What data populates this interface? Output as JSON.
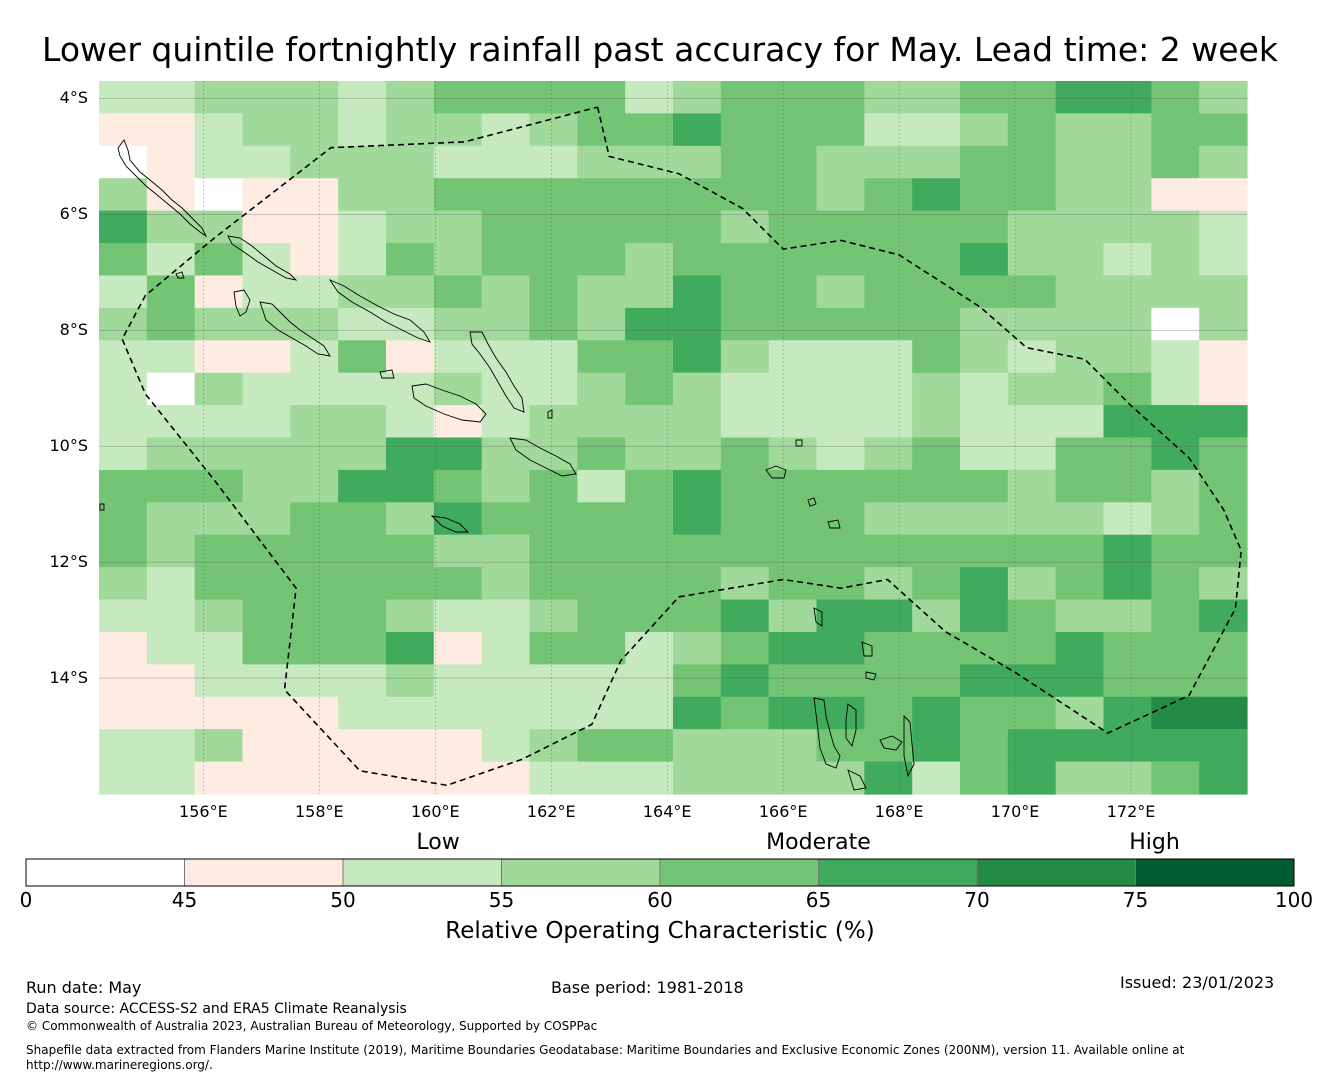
{
  "title": "Lower quintile fortnightly rainfall past accuracy for May. Lead time: 2 week",
  "map": {
    "lon_range": [
      154.2,
      174.0
    ],
    "lat_range": [
      -16.0,
      -3.7
    ],
    "lat_ticks": [
      {
        "value": -4,
        "label": "4°S"
      },
      {
        "value": -6,
        "label": "6°S"
      },
      {
        "value": -8,
        "label": "8°S"
      },
      {
        "value": -10,
        "label": "10°S"
      },
      {
        "value": -12,
        "label": "12°S"
      },
      {
        "value": -14,
        "label": "14°S"
      }
    ],
    "lon_ticks": [
      {
        "value": 156,
        "label": "156°E"
      },
      {
        "value": 158,
        "label": "158°E"
      },
      {
        "value": 160,
        "label": "160°E"
      },
      {
        "value": 162,
        "label": "162°E"
      },
      {
        "value": 164,
        "label": "164°E"
      },
      {
        "value": 166,
        "label": "166°E"
      },
      {
        "value": 168,
        "label": "168°E"
      },
      {
        "value": 170,
        "label": "170°E"
      },
      {
        "value": 172,
        "label": "172°E"
      }
    ],
    "grid": true,
    "grid_cols": 24,
    "grid_rows": 22,
    "cell_classes": [
      "223332344442344433445543",
      "112332332344544422343344",
      "012233322233344333443343",
      "310113344444444345443311",
      "533112334444434444433332",
      "424212434443444444533232",
      "241223343433544344443333",
      "343332233435544444333303",
      "221124122244532224323321",
      "203222232234322223233421",
      "222233212333322223222555",
      "233333553343343234224454",
      "444335543424544444434434",
      "433344354444544433333234",
      "434444433444444444444544",
      "324444443444434434534543",
      "223444322344453553543345",
      "122444512442345544445444",
      "112222322222454444555444",
      "111112222222545545443566",
      "223111112344333445455555",
      "221111111222333352453345"
    ],
    "eez_lonlat": [
      [
        162.8,
        -4.15
      ],
      [
        163.0,
        -5.0
      ],
      [
        164.2,
        -5.3
      ],
      [
        165.3,
        -5.9
      ],
      [
        166.0,
        -6.6
      ],
      [
        167.0,
        -6.45
      ],
      [
        168.0,
        -6.7
      ],
      [
        169.4,
        -7.6
      ],
      [
        170.2,
        -8.3
      ],
      [
        171.2,
        -8.5
      ],
      [
        172.0,
        -9.3
      ],
      [
        173.0,
        -10.2
      ],
      [
        173.6,
        -11.1
      ],
      [
        173.9,
        -11.8
      ],
      [
        173.8,
        -12.8
      ],
      [
        173.0,
        -14.3
      ],
      [
        171.6,
        -14.95
      ],
      [
        170.0,
        -13.9
      ],
      [
        168.8,
        -13.2
      ],
      [
        167.8,
        -12.3
      ],
      [
        167.0,
        -12.45
      ],
      [
        166.0,
        -12.3
      ],
      [
        164.2,
        -12.6
      ],
      [
        163.2,
        -13.7
      ],
      [
        162.7,
        -14.8
      ],
      [
        161.5,
        -15.4
      ],
      [
        160.2,
        -15.85
      ],
      [
        158.7,
        -15.6
      ],
      [
        157.4,
        -14.2
      ],
      [
        157.6,
        -12.45
      ],
      [
        156.2,
        -10.6
      ],
      [
        155.0,
        -9.1
      ],
      [
        154.6,
        -8.15
      ],
      [
        155.0,
        -7.4
      ],
      [
        156.2,
        -6.4
      ],
      [
        158.2,
        -4.85
      ],
      [
        160.5,
        -4.75
      ],
      [
        162.8,
        -4.15
      ]
    ]
  },
  "colorbar": {
    "categories": [
      {
        "label": "Low",
        "position": 53
      },
      {
        "label": "Moderate",
        "position": 65
      },
      {
        "label": "High",
        "position": 78
      }
    ],
    "bins": [
      {
        "from": 0,
        "to": 45,
        "color": "#ffffff"
      },
      {
        "from": 45,
        "to": 50,
        "color": "#feebe2"
      },
      {
        "from": 50,
        "to": 55,
        "color": "#c7e9c0"
      },
      {
        "from": 55,
        "to": 60,
        "color": "#a1d99b"
      },
      {
        "from": 60,
        "to": 65,
        "color": "#74c476"
      },
      {
        "from": 65,
        "to": 70,
        "color": "#41ab5d"
      },
      {
        "from": 70,
        "to": 75,
        "color": "#238b45"
      },
      {
        "from": 75,
        "to": 100,
        "color": "#005a32"
      }
    ],
    "ticks": [
      "0",
      "45",
      "50",
      "55",
      "60",
      "65",
      "70",
      "75",
      "100"
    ],
    "label": "Relative Operating Characteristic (%)"
  },
  "footer": {
    "run_date": "Run date: May",
    "base_period": "Base period: 1981-2018",
    "issued": "Issued: 23/01/2023",
    "data_source": "Data source: ACCESS-S2 and ERA5 Climate Reanalysis",
    "copyright": "© Commonwealth of Australia 2023, Australian Bureau of Meteorology, Supported by COSPPac",
    "shapefile_line1": "Shapefile data extracted from Flanders Marine Institute (2019), Maritime Boundaries Geodatabase: Maritime Boundaries and Exclusive Economic Zones (200NM), version 11. Available online at",
    "shapefile_line2": "http://www.marineregions.org/."
  }
}
